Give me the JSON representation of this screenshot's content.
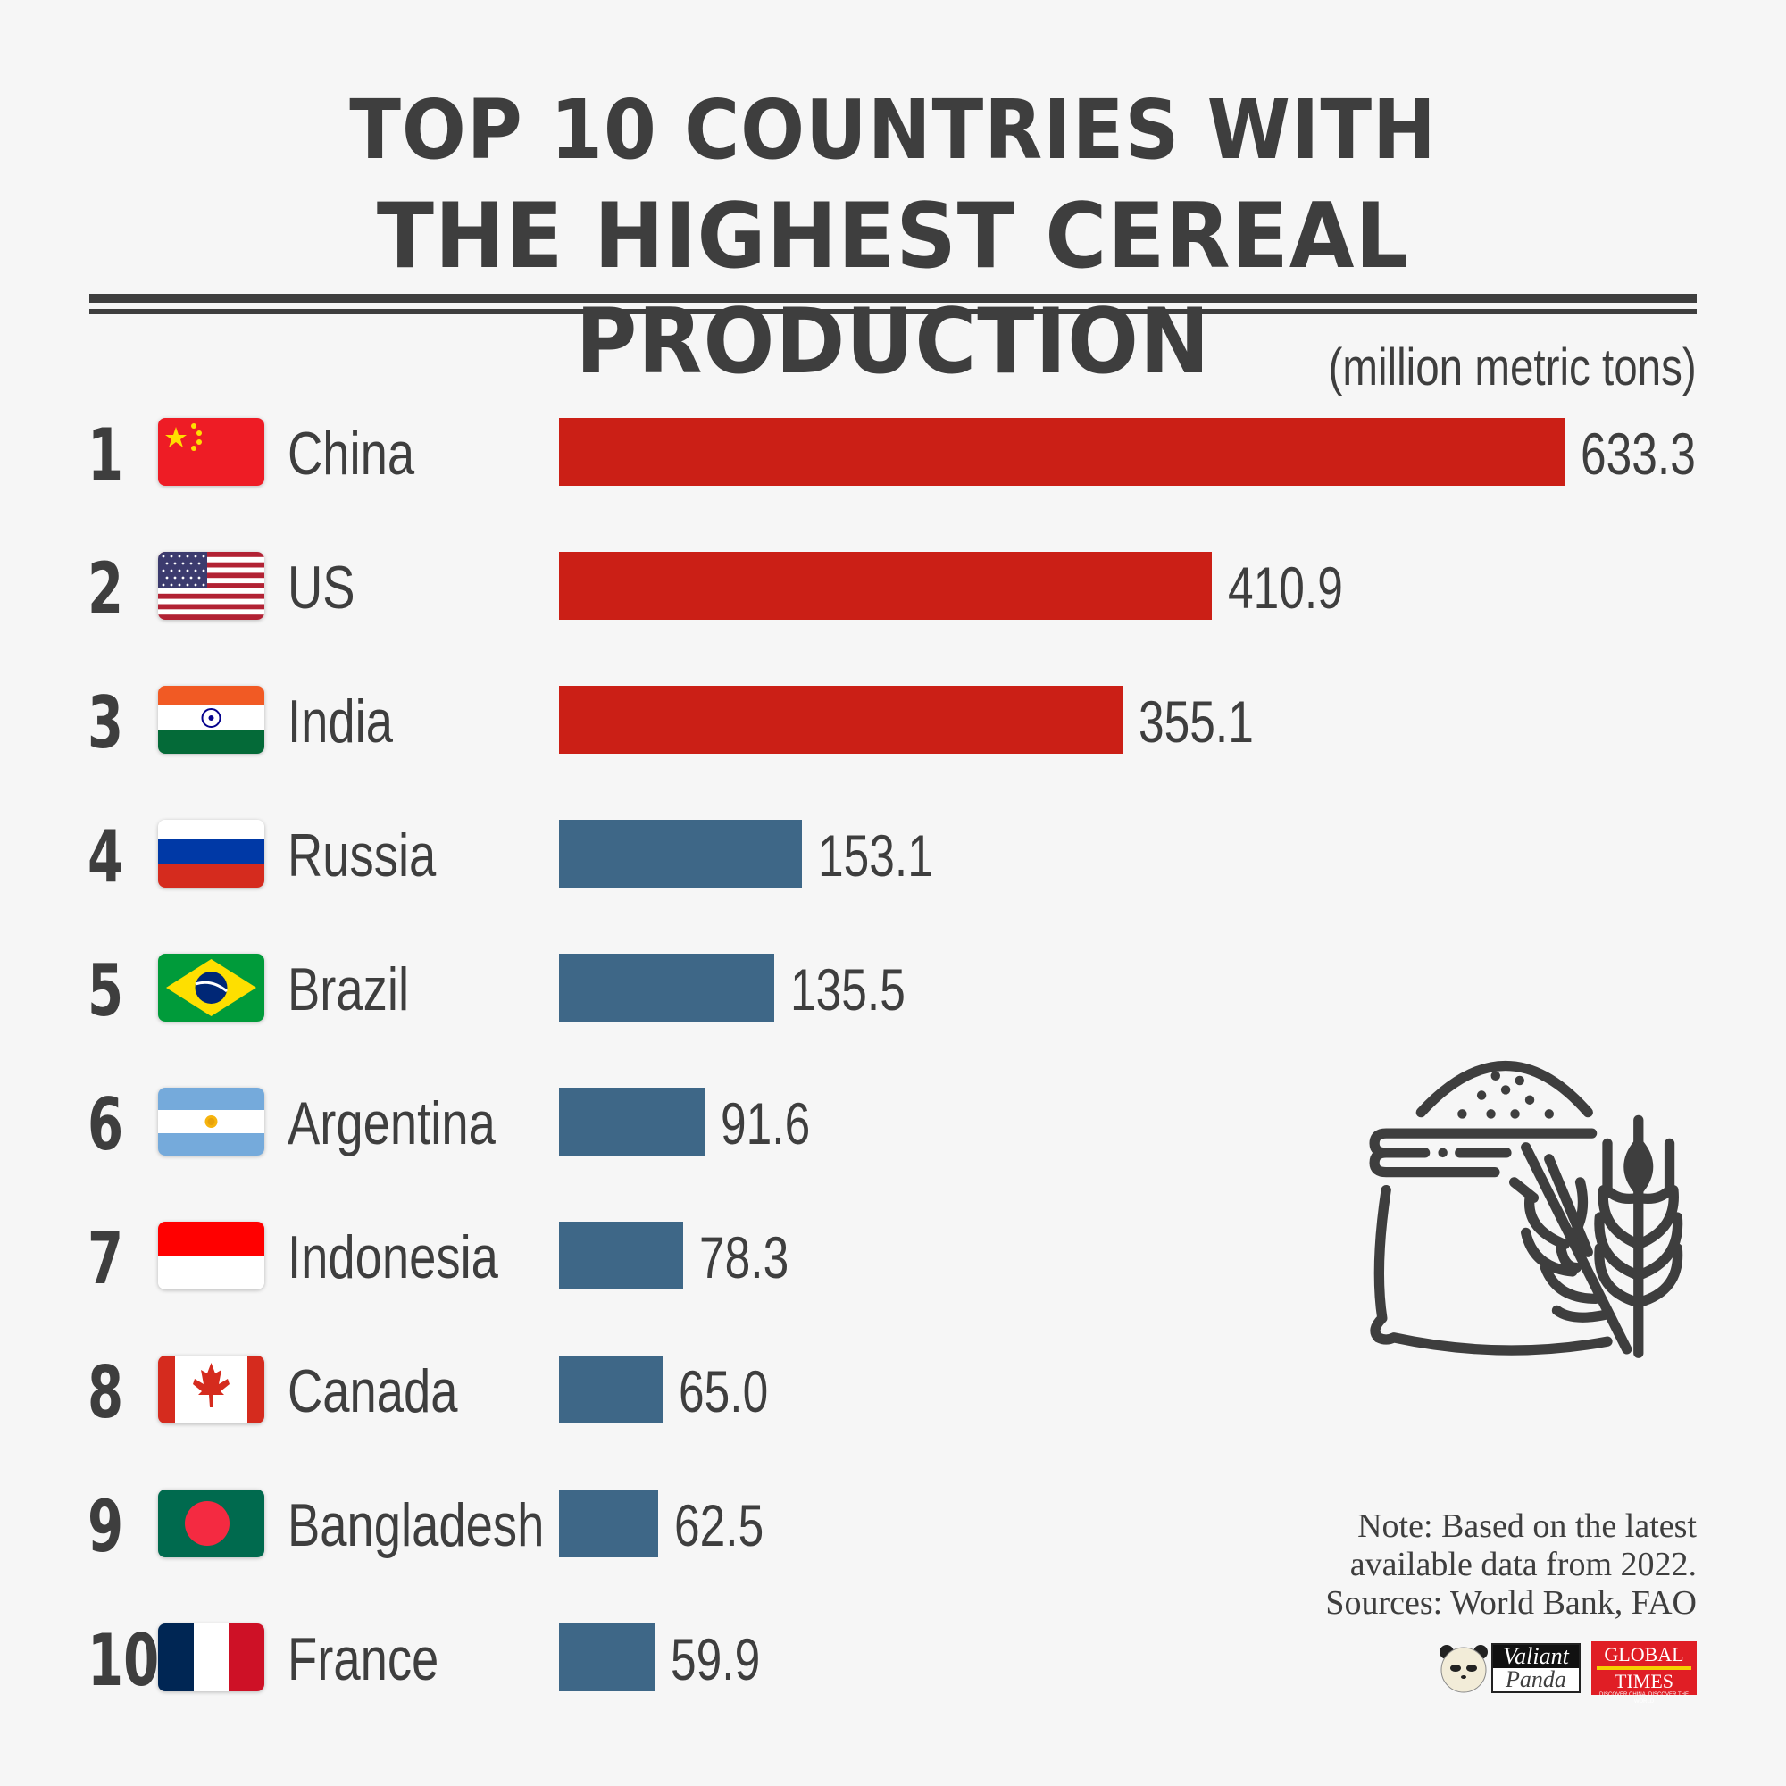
{
  "title": {
    "line1": "TOP 10 COUNTRIES WITH",
    "line2": "THE HIGHEST CEREAL PRODUCTION"
  },
  "unit_label": "(million metric tons)",
  "colors": {
    "top3_bar": "#cb1f16",
    "other_bar": "#3e6787",
    "text": "#3e3e3e",
    "background": "#f6f6f6"
  },
  "rows": [
    {
      "rank": "1",
      "country": "China",
      "value": "633.3",
      "flag": "china-flag"
    },
    {
      "rank": "2",
      "country": "US",
      "value": "410.9",
      "flag": "us-flag"
    },
    {
      "rank": "3",
      "country": "India",
      "value": "355.1",
      "flag": "india-flag"
    },
    {
      "rank": "4",
      "country": "Russia",
      "value": "153.1",
      "flag": "russia-flag"
    },
    {
      "rank": "5",
      "country": "Brazil",
      "value": "135.5",
      "flag": "brazil-flag"
    },
    {
      "rank": "6",
      "country": "Argentina",
      "value": "91.6",
      "flag": "argentina-flag"
    },
    {
      "rank": "7",
      "country": "Indonesia",
      "value": "78.3",
      "flag": "indonesia-flag"
    },
    {
      "rank": "8",
      "country": "Canada",
      "value": "65.0",
      "flag": "canada-flag"
    },
    {
      "rank": "9",
      "country": "Bangladesh",
      "value": "62.5",
      "flag": "bangladesh-flag"
    },
    {
      "rank": "10",
      "country": "France",
      "value": "59.9",
      "flag": "france-flag"
    }
  ],
  "note": {
    "line1": "Note: Based on the latest",
    "line2": "available data from 2022.",
    "line3": "Sources: World Bank, FAO"
  },
  "logos": {
    "valiant_top": "Valiant",
    "valiant_bottom": "Panda",
    "gt_top": "GLOBAL",
    "gt_bottom": "TIMES",
    "gt_tagline": "DISCOVER CHINA, DISCOVER THE WORLD"
  },
  "icon": "grain-sack-wheat-icon",
  "chart_data": {
    "type": "bar",
    "orientation": "horizontal",
    "title": "TOP 10 COUNTRIES WITH THE HIGHEST CEREAL PRODUCTION",
    "xlabel": "",
    "ylabel": "",
    "unit": "million metric tons",
    "categories": [
      "China",
      "US",
      "India",
      "Russia",
      "Brazil",
      "Argentina",
      "Indonesia",
      "Canada",
      "Bangladesh",
      "France"
    ],
    "values": [
      633.3,
      410.9,
      355.1,
      153.1,
      135.5,
      91.6,
      78.3,
      65.0,
      62.5,
      59.9
    ],
    "bar_colors": [
      "#cb1f16",
      "#cb1f16",
      "#cb1f16",
      "#3e6787",
      "#3e6787",
      "#3e6787",
      "#3e6787",
      "#3e6787",
      "#3e6787",
      "#3e6787"
    ],
    "grid": false,
    "legend": "none",
    "annotations": [
      "Note: Based on the latest available data from 2022.",
      "Sources: World Bank, FAO"
    ]
  }
}
